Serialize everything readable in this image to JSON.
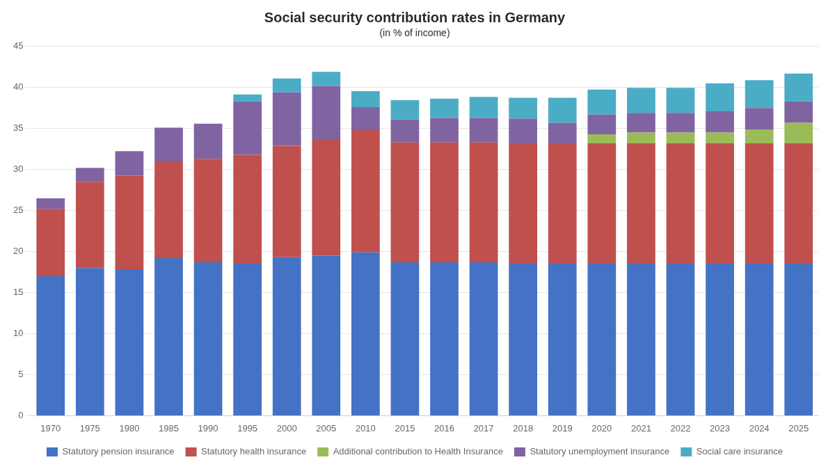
{
  "chart_data": {
    "type": "bar",
    "title": "Social security contribution rates in Germany",
    "subtitle": "(in % of income)",
    "categories": [
      1970,
      1975,
      1980,
      1985,
      1990,
      1995,
      2000,
      2005,
      2010,
      2015,
      2016,
      2017,
      2018,
      2019,
      2020,
      2021,
      2022,
      2023,
      2024,
      2025
    ],
    "series": [
      {
        "name": "Statutory pension insurance",
        "color": "#4472C4",
        "values": [
          17.0,
          18.0,
          17.85,
          19.2,
          18.7,
          18.6,
          19.3,
          19.5,
          19.9,
          18.7,
          18.7,
          18.7,
          18.6,
          18.6,
          18.6,
          18.6,
          18.6,
          18.6,
          18.6,
          18.6
        ]
      },
      {
        "name": "Statutory health insurance",
        "color": "#C0504D",
        "values": [
          8.2,
          10.5,
          11.4,
          11.8,
          12.6,
          13.2,
          13.6,
          14.2,
          14.9,
          14.6,
          14.6,
          14.6,
          14.6,
          14.6,
          14.6,
          14.6,
          14.6,
          14.6,
          14.6,
          14.6
        ]
      },
      {
        "name": "Additional contribution to Health Insurance",
        "color": "#9BBB59",
        "values": [
          0.0,
          0.0,
          0.0,
          0.0,
          0.0,
          0.0,
          0.0,
          0.0,
          0.0,
          0.0,
          0.0,
          0.0,
          0.0,
          0.0,
          1.1,
          1.3,
          1.3,
          1.3,
          1.7,
          2.5
        ]
      },
      {
        "name": "Statutory unemployment insurance",
        "color": "#8064A2",
        "values": [
          1.3,
          1.7,
          3.0,
          4.1,
          4.3,
          6.5,
          6.5,
          6.5,
          2.8,
          2.8,
          3.0,
          3.0,
          3.0,
          2.5,
          2.4,
          2.4,
          2.4,
          2.6,
          2.6,
          2.6
        ]
      },
      {
        "name": "Social care insurance",
        "color": "#4BACC6",
        "values": [
          0.0,
          0.0,
          0.0,
          0.0,
          0.0,
          0.85,
          1.7,
          1.7,
          1.95,
          2.35,
          2.35,
          2.55,
          2.55,
          3.05,
          3.05,
          3.05,
          3.05,
          3.4,
          3.4,
          3.4
        ]
      }
    ],
    "stacked": true,
    "ylim": [
      0,
      45
    ],
    "yticks": [
      0,
      5,
      10,
      15,
      20,
      25,
      30,
      35,
      40,
      45
    ],
    "grid": true,
    "legend": "bottom"
  }
}
